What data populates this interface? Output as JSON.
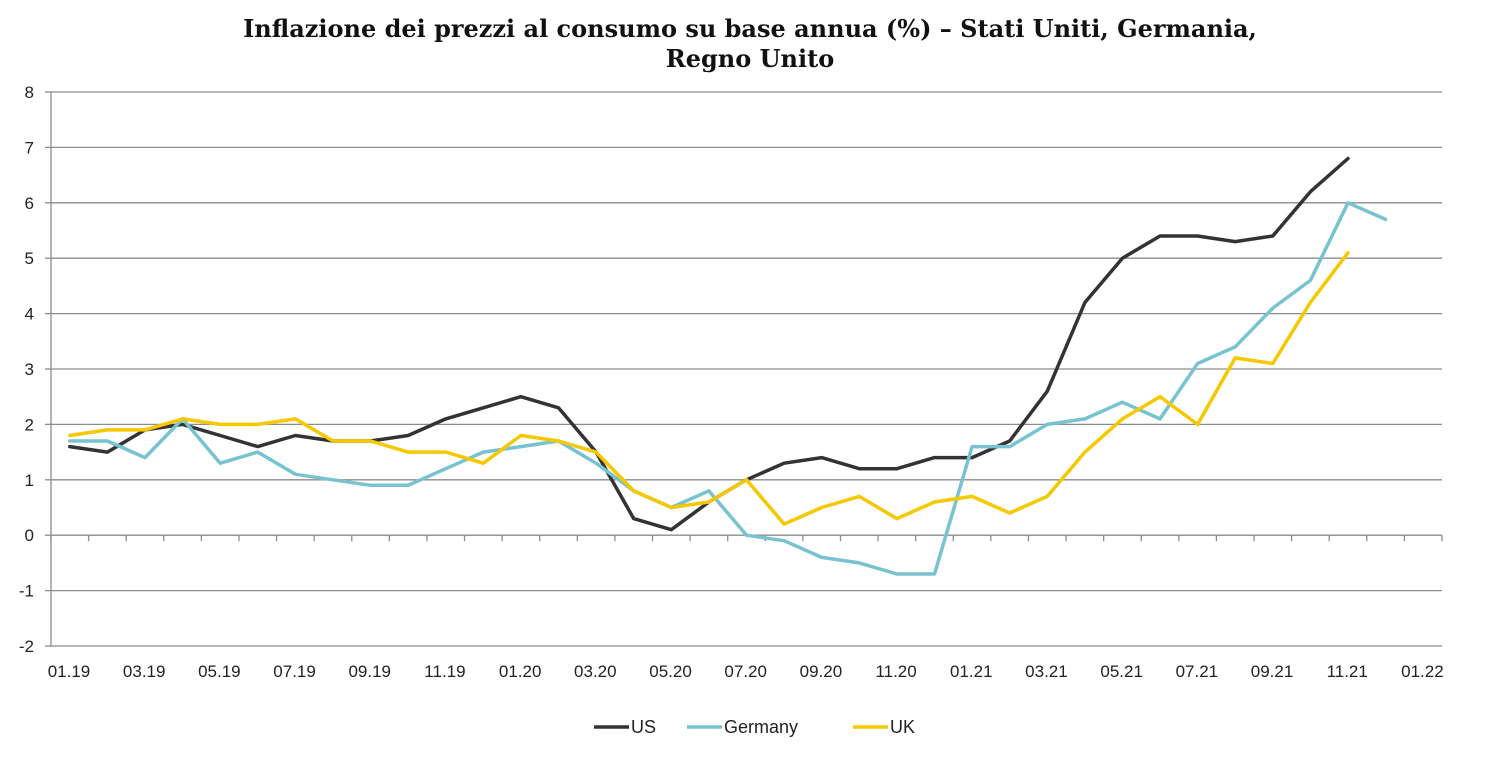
{
  "chart_data": {
    "type": "line",
    "title": [
      "Inflazione dei prezzi al consumo su base annua (%) – Stati Uniti, Germania,",
      "Regno Unito"
    ],
    "xlabel": "",
    "ylabel": "",
    "ylim": [
      -2,
      8
    ],
    "yticks": [
      -2,
      -1,
      0,
      1,
      2,
      3,
      4,
      5,
      6,
      7,
      8
    ],
    "xlim": [
      0,
      37
    ],
    "xtick_labels": [
      "01.19",
      "03.19",
      "05.19",
      "07.19",
      "09.19",
      "11.19",
      "01.20",
      "03.20",
      "05.20",
      "07.20",
      "09.20",
      "11.20",
      "01.21",
      "03.21",
      "05.21",
      "07.21",
      "09.21",
      "11.21",
      "01.22"
    ],
    "grid": "horizontal",
    "legend_position": "bottom",
    "series": [
      {
        "name": "US",
        "color": "#333333",
        "values": [
          1.6,
          1.5,
          1.9,
          2.0,
          1.8,
          1.6,
          1.8,
          1.7,
          1.7,
          1.8,
          2.1,
          2.3,
          2.5,
          2.3,
          1.5,
          0.3,
          0.1,
          0.6,
          1.0,
          1.3,
          1.4,
          1.2,
          1.2,
          1.4,
          1.4,
          1.7,
          2.6,
          4.2,
          5.0,
          5.4,
          5.4,
          5.3,
          5.4,
          6.2,
          6.8
        ]
      },
      {
        "name": "Germany",
        "color": "#78c3d0",
        "values": [
          1.7,
          1.7,
          1.4,
          2.1,
          1.3,
          1.5,
          1.1,
          1.0,
          0.9,
          0.9,
          1.2,
          1.5,
          1.6,
          1.7,
          1.3,
          0.8,
          0.5,
          0.8,
          0.0,
          -0.1,
          -0.4,
          -0.5,
          -0.7,
          -0.7,
          1.6,
          1.6,
          2.0,
          2.1,
          2.4,
          2.1,
          3.1,
          3.4,
          4.1,
          4.6,
          6.0,
          5.7
        ]
      },
      {
        "name": "UK",
        "color": "#f5c800",
        "values": [
          1.8,
          1.9,
          1.9,
          2.1,
          2.0,
          2.0,
          2.1,
          1.7,
          1.7,
          1.5,
          1.5,
          1.3,
          1.8,
          1.7,
          1.5,
          0.8,
          0.5,
          0.6,
          1.0,
          0.2,
          0.5,
          0.7,
          0.3,
          0.6,
          0.7,
          0.4,
          0.7,
          1.5,
          2.1,
          2.5,
          2.0,
          3.2,
          3.1,
          4.2,
          5.1
        ]
      }
    ]
  }
}
